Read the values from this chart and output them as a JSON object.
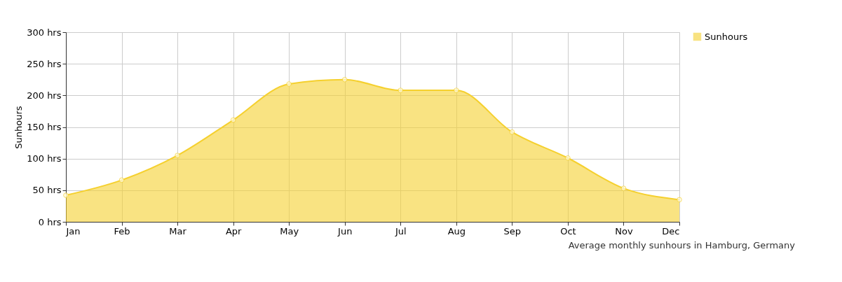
{
  "chart_data": {
    "type": "area",
    "ylabel": "Sunhours",
    "categories": [
      "Jan",
      "Feb",
      "Mar",
      "Apr",
      "May",
      "Jun",
      "Jul",
      "Aug",
      "Sep",
      "Oct",
      "Nov",
      "Dec"
    ],
    "series": [
      {
        "name": "Sunhours",
        "color": "#f5d02e",
        "values": [
          42,
          66,
          105,
          161,
          218,
          225,
          208,
          208,
          142,
          101,
          53,
          35
        ]
      }
    ],
    "ylim": [
      0,
      300
    ],
    "yticks": [
      {
        "value": 0,
        "label": "0 hrs"
      },
      {
        "value": 50,
        "label": "50 hrs"
      },
      {
        "value": 100,
        "label": "100 hrs"
      },
      {
        "value": 150,
        "label": "150 hrs"
      },
      {
        "value": 200,
        "label": "200 hrs"
      },
      {
        "value": 250,
        "label": "250 hrs"
      },
      {
        "value": 300,
        "label": "300 hrs"
      }
    ],
    "grid": true,
    "legend": "top right",
    "marker": "circle",
    "annotations": [
      "Average monthly sunhours in Hamburg, Germany"
    ]
  }
}
